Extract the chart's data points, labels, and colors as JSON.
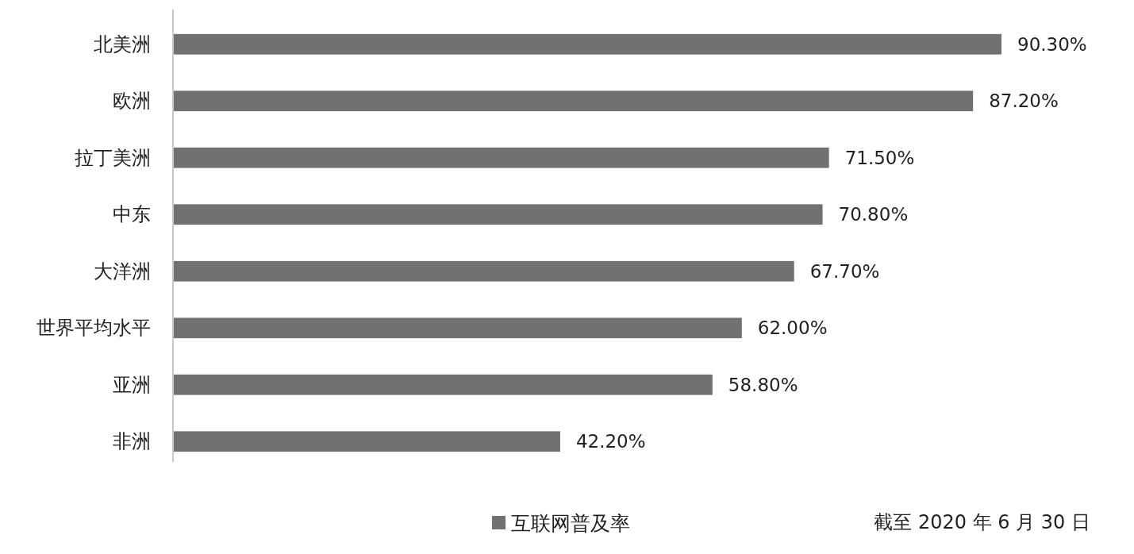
{
  "chart_data": {
    "type": "bar",
    "orientation": "horizontal",
    "categories": [
      "北美洲",
      "欧洲",
      "拉丁美洲",
      "中东",
      "大洋洲",
      "世界平均水平",
      "亚洲",
      "非洲"
    ],
    "series": [
      {
        "name": "互联网普及率",
        "color": "#717171",
        "values": [
          90.3,
          87.2,
          71.5,
          70.8,
          67.7,
          62.0,
          58.8,
          42.2
        ],
        "value_labels": [
          "90.30%",
          "87.20%",
          "71.50%",
          "70.80%",
          "67.70%",
          "62.00%",
          "58.80%",
          "42.20%"
        ]
      }
    ],
    "legend": "bottom",
    "annotations": [
      "截至 2020 年 6 月 30 日"
    ]
  }
}
